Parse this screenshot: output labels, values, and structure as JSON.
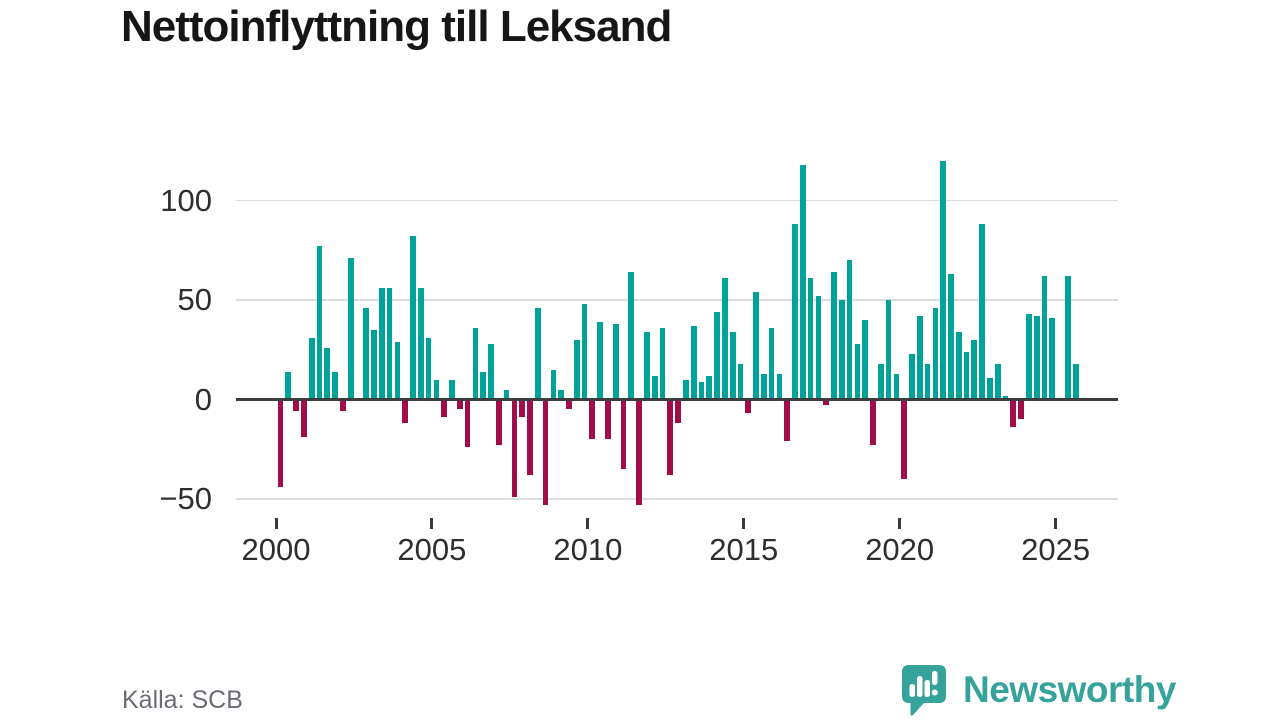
{
  "title": "Nettoinflyttning till Leksand",
  "footer": {
    "source": "Källa: SCB"
  },
  "branding": {
    "wordmark": "Newsworthy"
  },
  "colors": {
    "positive": "#00a29a",
    "negative": "#a00d48",
    "grid": "#dcdcdc",
    "zero_line": "#3d3d3d",
    "axis_text": "#2e2e2e",
    "brand": "#35a39b",
    "title_text": "#161616",
    "source_text": "#6b6b74"
  },
  "chart_data": {
    "type": "bar",
    "title": "Nettoinflyttning till Leksand",
    "xlabel": "",
    "ylabel": "",
    "frequency": "quarterly",
    "x_start": "2000-Q1",
    "x_end": "2025-Q3",
    "x_tick_years": [
      2000,
      2005,
      2010,
      2015,
      2020,
      2025
    ],
    "y_ticks": [
      100,
      50,
      0,
      -50
    ],
    "ylim": [
      -62,
      126
    ],
    "grid": true,
    "legend": "none",
    "values": [
      -44,
      14,
      -6,
      -19,
      31,
      77,
      26,
      14,
      -6,
      71,
      0,
      46,
      35,
      56,
      56,
      29,
      -12,
      82,
      56,
      31,
      10,
      -9,
      10,
      -5,
      -24,
      36,
      14,
      28,
      -23,
      5,
      -49,
      -9,
      -38,
      46,
      -53,
      15,
      5,
      -5,
      30,
      48,
      -20,
      39,
      -20,
      38,
      -35,
      64,
      -53,
      34,
      12,
      36,
      -38,
      -12,
      10,
      37,
      9,
      12,
      44,
      61,
      34,
      18,
      -7,
      54,
      13,
      36,
      13,
      -21,
      88,
      118,
      61,
      52,
      -3,
      64,
      50,
      70,
      28,
      40,
      -23,
      18,
      50,
      13,
      -40,
      23,
      42,
      18,
      46,
      120,
      63,
      34,
      24,
      30,
      88,
      11,
      18,
      2,
      -14,
      -10,
      43,
      42,
      62,
      41,
      0,
      62,
      18
    ]
  }
}
